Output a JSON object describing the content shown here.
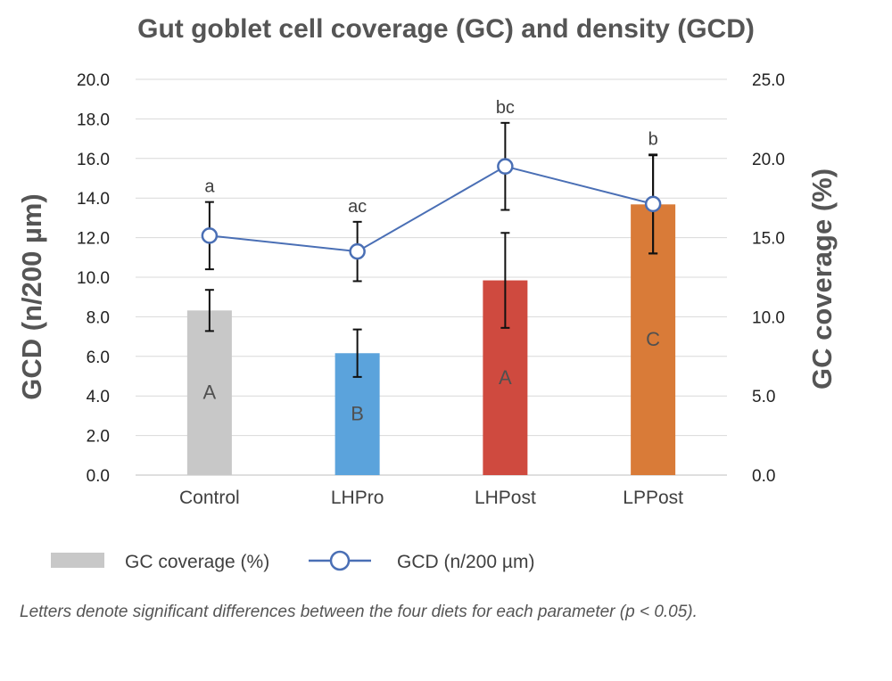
{
  "chart_data": {
    "type": "bar",
    "title": "Gut  goblet cell coverage (GC) and density (GCD)",
    "categories": [
      "Control",
      "LHPro",
      "LHPost",
      "LPPost"
    ],
    "y_left": {
      "label": "GCD (n/200 µm)",
      "ylim": [
        0,
        20
      ],
      "ticks": [
        "0.0",
        "2.0",
        "4.0",
        "6.0",
        "8.0",
        "10.0",
        "12.0",
        "14.0",
        "16.0",
        "18.0",
        "20.0"
      ]
    },
    "y_right": {
      "label": "GC coverage (%)",
      "ylim": [
        0,
        25
      ],
      "ticks": [
        "0.0",
        "5.0",
        "10.0",
        "15.0",
        "20.0",
        "25.0"
      ]
    },
    "grid": true,
    "legend_position": "bottom",
    "series": [
      {
        "name": "GC coverage (%)",
        "type": "bar",
        "axis": "right",
        "values": [
          10.4,
          7.7,
          12.3,
          17.1
        ],
        "error": [
          1.3,
          1.5,
          3.0,
          3.1
        ],
        "colors": [
          "#c8c8c8",
          "#5ba3dc",
          "#cf4a3f",
          "#d97b38"
        ],
        "legend_color": "#c8c8c8",
        "significance": [
          "A",
          "B",
          "A",
          "C"
        ]
      },
      {
        "name": "GCD (n/200 µm)",
        "type": "line",
        "axis": "left",
        "values": [
          12.1,
          11.3,
          15.6,
          13.7
        ],
        "error": [
          1.7,
          1.5,
          2.2,
          2.5
        ],
        "color": "#4a6fb5",
        "significance": [
          "a",
          "ac",
          "bc",
          "b"
        ]
      }
    ],
    "footnote": "Letters denote significant differences between the four diets for each parameter (p < 0.05)."
  }
}
